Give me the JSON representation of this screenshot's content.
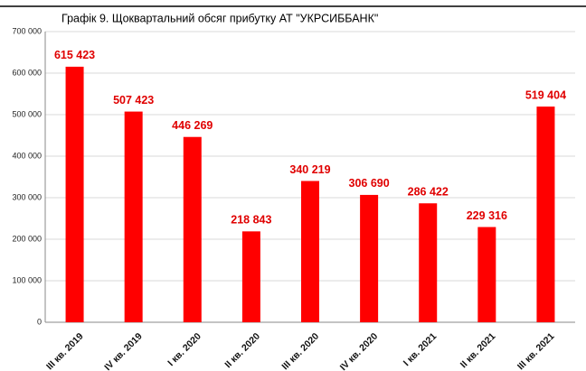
{
  "chart_data": {
    "type": "bar",
    "title": "Графік 9. Щоквартальний обсяг прибутку АТ \"УКРСИББАНК\"",
    "categories": [
      "III кв. 2019",
      "IV кв. 2019",
      "I кв. 2020",
      "II кв. 2020",
      "III кв. 2020",
      "IV кв. 2020",
      "I кв. 2021",
      "II кв. 2021",
      "III кв. 2021"
    ],
    "values": [
      615423,
      507423,
      446269,
      218843,
      340219,
      306690,
      286422,
      229316,
      519404
    ],
    "value_labels": [
      "615 423",
      "507 423",
      "446 269",
      "218 843",
      "340 219",
      "306 690",
      "286 422",
      "229 316",
      "519 404"
    ],
    "color": "#ff0000",
    "ylim": [
      0,
      700000
    ],
    "yticks": [
      0,
      {
        "value": 100000,
        "label": "100 000"
      },
      {
        "value": 200000,
        "label": "200 000"
      },
      {
        "value": 300000,
        "label": "300 000"
      },
      {
        "value": 400000,
        "label": "400 000"
      },
      {
        "value": 500000,
        "label": "500 000"
      },
      {
        "value": 600000,
        "label": "600 000"
      },
      {
        "value": 700000,
        "label": "700 000"
      }
    ],
    "grid": true
  }
}
